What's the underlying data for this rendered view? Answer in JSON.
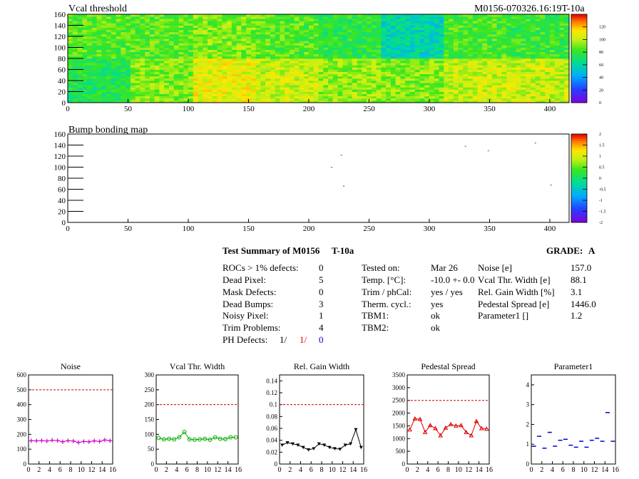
{
  "module_id": "M0156-070326.16:19T-10a",
  "maps": [
    {
      "title": "Vcal threshold",
      "x_ticks": [
        "0",
        "50",
        "100",
        "150",
        "200",
        "250",
        "300",
        "350",
        "400"
      ],
      "y_ticks": [
        "0",
        "20",
        "40",
        "60",
        "80",
        "100",
        "120",
        "140",
        "160"
      ],
      "palette_labels": [
        "0",
        "20",
        "40",
        "60",
        "80",
        "100",
        "120"
      ]
    },
    {
      "title": "Bump bonding map",
      "x_ticks": [
        "0",
        "50",
        "100",
        "150",
        "200",
        "250",
        "300",
        "350",
        "400"
      ],
      "y_ticks": [
        "0",
        "20",
        "40",
        "60",
        "80",
        "100",
        "120",
        "140",
        "160"
      ],
      "palette_labels": [
        "-2",
        "-1.5",
        "-1",
        "-0.5",
        "0",
        "0.5",
        "1",
        "1.5",
        "2"
      ]
    }
  ],
  "summary": {
    "title": "Test Summary of M0156",
    "temp_label": "T-10a",
    "grade_label": "GRADE:",
    "grade_value": "A",
    "left": [
      {
        "label": "ROCs > 1% defects:",
        "value": "0"
      },
      {
        "label": "Dead Pixel:",
        "value": "5"
      },
      {
        "label": "Mask Defects:",
        "value": "0"
      },
      {
        "label": "Dead Bumps:",
        "value": "3"
      },
      {
        "label": "Noisy Pixel:",
        "value": "1"
      },
      {
        "label": "Trim Problems:",
        "value": "4"
      }
    ],
    "ph_defects": {
      "label": "PH Defects:",
      "v1": "1/",
      "v2": "1/",
      "v3": "0",
      "c1": "#000000",
      "c2": "#e00000",
      "c3": "#0000cc"
    },
    "middle": [
      {
        "label": "Tested on:",
        "value": "Mar 26"
      },
      {
        "label": "Temp. [°C]:",
        "value": "-10.0 +- 0.0"
      },
      {
        "label": "Trim / phCal:",
        "value": "yes / yes"
      },
      {
        "label": "Therm. cycl.:",
        "value": "yes"
      },
      {
        "label": "TBM1:",
        "value": "ok"
      },
      {
        "label": "TBM2:",
        "value": "ok"
      }
    ],
    "right": [
      {
        "label": "Noise [e]",
        "value": "157.0"
      },
      {
        "label": "Vcal Thr. Width [e]",
        "value": "88.1"
      },
      {
        "label": "Rel. Gain Width [%]",
        "value": "3.1"
      },
      {
        "label": "Pedestal Spread [e]",
        "value": "1446.0"
      },
      {
        "label": "Parameter1 []",
        "value": "1.2"
      }
    ]
  },
  "chart_data": [
    {
      "type": "heatmap",
      "title": "Vcal threshold",
      "xlim": [
        0,
        416
      ],
      "ylim": [
        0,
        160
      ],
      "zlim": [
        0,
        130
      ],
      "rocs_grid": [
        8,
        2
      ],
      "roc_means_top_row": [
        80,
        80,
        85,
        80,
        72,
        55,
        78,
        75
      ],
      "roc_means_bottom_row": [
        70,
        85,
        100,
        95,
        88,
        85,
        95,
        95
      ]
    },
    {
      "type": "scatter",
      "title": "Bump bonding map",
      "xlim": [
        0,
        416
      ],
      "ylim": [
        0,
        160
      ],
      "zlim": [
        -2,
        2
      ],
      "points": [
        [
          219,
          100
        ],
        [
          227,
          122
        ],
        [
          229,
          66
        ],
        [
          330,
          138
        ],
        [
          349,
          130
        ],
        [
          388,
          144
        ],
        [
          401,
          68
        ]
      ]
    },
    {
      "type": "scatter",
      "title": "Noise",
      "x": [
        0,
        1,
        2,
        3,
        4,
        5,
        6,
        7,
        8,
        9,
        10,
        11,
        12,
        13,
        14,
        15
      ],
      "values": [
        157,
        156,
        158,
        155,
        160,
        158,
        150,
        157,
        155,
        145,
        152,
        150,
        156,
        152,
        162,
        157
      ],
      "xlim": [
        0,
        16
      ],
      "ylim": [
        0,
        600
      ],
      "x_ticks": [
        "0",
        "2",
        "4",
        "6",
        "8",
        "10",
        "12",
        "14",
        "16"
      ],
      "y_ticks": [
        "0",
        "100",
        "200",
        "300",
        "400",
        "500",
        "600"
      ],
      "reference_line": 500,
      "marker": "plus",
      "color": "#cc00cc"
    },
    {
      "type": "line",
      "title": "Vcal Thr. Width",
      "x": [
        0,
        1,
        2,
        3,
        4,
        5,
        6,
        7,
        8,
        9,
        10,
        11,
        12,
        13,
        14,
        15
      ],
      "values": [
        88,
        83,
        85,
        83,
        90,
        108,
        83,
        82,
        83,
        85,
        82,
        90,
        85,
        84,
        90,
        90
      ],
      "xlim": [
        0,
        16
      ],
      "ylim": [
        0,
        300
      ],
      "x_ticks": [
        "0",
        "2",
        "4",
        "6",
        "8",
        "10",
        "12",
        "14",
        "16"
      ],
      "y_ticks": [
        "0",
        "50",
        "100",
        "150",
        "200",
        "250",
        "300"
      ],
      "reference_line": 200,
      "marker": "circle",
      "color": "#00aa00"
    },
    {
      "type": "line",
      "title": "Rel. Gain Width",
      "x": [
        0,
        1,
        2,
        3,
        4,
        5,
        6,
        7,
        8,
        9,
        10,
        11,
        12,
        13,
        14,
        15
      ],
      "values": [
        0.032,
        0.036,
        0.034,
        0.032,
        0.028,
        0.024,
        0.026,
        0.034,
        0.032,
        0.028,
        0.026,
        0.025,
        0.032,
        0.034,
        0.058,
        0.028
      ],
      "xlim": [
        0,
        16
      ],
      "ylim": [
        0,
        0.15
      ],
      "x_ticks": [
        "0",
        "2",
        "4",
        "6",
        "8",
        "10",
        "12",
        "14",
        "16"
      ],
      "y_ticks": [
        "0",
        "0.02",
        "0.04",
        "0.06",
        "0.08",
        "0.1",
        "0.12",
        "0.14"
      ],
      "reference_line": 0.1,
      "marker": "triangle-down",
      "color": "#000000"
    },
    {
      "type": "line",
      "title": "Pedestal Spread",
      "x": [
        0,
        1,
        2,
        3,
        4,
        5,
        6,
        7,
        8,
        9,
        10,
        11,
        12,
        13,
        14,
        15
      ],
      "values": [
        1350,
        1780,
        1760,
        1250,
        1520,
        1400,
        1120,
        1420,
        1560,
        1500,
        1520,
        1250,
        1120,
        1680,
        1400,
        1380
      ],
      "xlim": [
        0,
        16
      ],
      "ylim": [
        0,
        3500
      ],
      "x_ticks": [
        "0",
        "2",
        "4",
        "6",
        "8",
        "10",
        "12",
        "14",
        "16"
      ],
      "y_ticks": [
        "0",
        "500",
        "1000",
        "1500",
        "2000",
        "2500",
        "3000",
        "3500"
      ],
      "reference_line": 2500,
      "marker": "triangle-up",
      "color": "#dd0000"
    },
    {
      "type": "scatter",
      "title": "Parameter1",
      "x": [
        0,
        1,
        2,
        3,
        4,
        5,
        6,
        7,
        8,
        9,
        10,
        11,
        12,
        13,
        14,
        15
      ],
      "values": [
        0.9,
        1.4,
        0.8,
        1.6,
        0.9,
        1.2,
        1.25,
        0.95,
        0.85,
        1.15,
        0.85,
        1.2,
        1.3,
        1.15,
        2.6,
        1.15
      ],
      "xlim": [
        0,
        16
      ],
      "ylim": [
        0,
        4.5
      ],
      "x_ticks": [
        "0",
        "2",
        "4",
        "6",
        "8",
        "10",
        "12",
        "14",
        "16"
      ],
      "y_ticks": [
        "0",
        "1",
        "2",
        "3",
        "4"
      ],
      "marker": "hline",
      "color": "#0000cc"
    }
  ]
}
